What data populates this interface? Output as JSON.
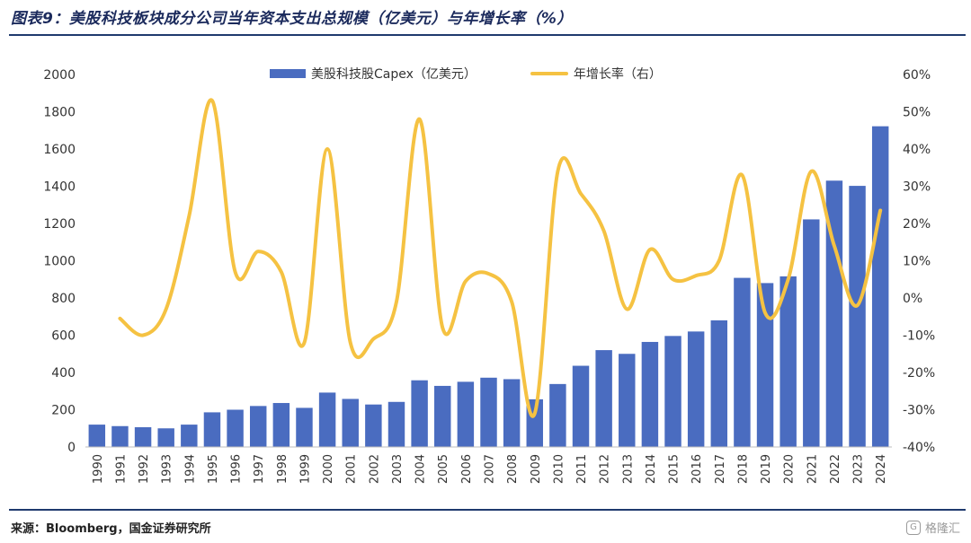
{
  "title": "图表9：美股科技板块成分公司当年资本支出总规模（亿美元）与年增长率（%）",
  "source": "来源：Bloomberg，国金证券研究所",
  "watermark": "格隆汇",
  "colors": {
    "bar": "#4a6cc0",
    "line": "#f5c242",
    "rule": "#1f3a6e"
  },
  "chart_data": {
    "type": "bar",
    "categories": [
      "1990",
      "1991",
      "1992",
      "1993",
      "1994",
      "1995",
      "1996",
      "1997",
      "1998",
      "1999",
      "2000",
      "2001",
      "2002",
      "2003",
      "2004",
      "2005",
      "2006",
      "2007",
      "2008",
      "2009",
      "2010",
      "2011",
      "2012",
      "2013",
      "2014",
      "2015",
      "2016",
      "2017",
      "2018",
      "2019",
      "2020",
      "2021",
      "2022",
      "2023",
      "2024"
    ],
    "series": [
      {
        "name": "美股科技股Capex（亿美元）",
        "type": "bar",
        "axis": "left",
        "values": [
          120,
          112,
          106,
          100,
          120,
          186,
          200,
          220,
          236,
          210,
          292,
          258,
          228,
          242,
          358,
          328,
          350,
          372,
          364,
          256,
          338,
          436,
          520,
          500,
          564,
          596,
          620,
          680,
          908,
          880,
          916,
          1222,
          1430,
          1402,
          1722
        ]
      },
      {
        "name": "年增长率（右）",
        "type": "line",
        "axis": "right",
        "values": [
          null,
          -5.5,
          -10,
          -3,
          22,
          53,
          7,
          12.5,
          7,
          -12,
          40,
          -12,
          -11,
          -1,
          48,
          -8,
          4.5,
          6.5,
          -1,
          -31,
          34,
          28,
          18,
          -3,
          13,
          5,
          6,
          10,
          33,
          -4,
          5,
          34,
          14,
          -2,
          23.5
        ]
      }
    ],
    "y_left": {
      "min": 0,
      "max": 2000,
      "ticks": [
        "0",
        "200",
        "400",
        "600",
        "800",
        "1000",
        "1200",
        "1400",
        "1600",
        "1800",
        "2000"
      ]
    },
    "y_right": {
      "min": -40,
      "max": 60,
      "ticks": [
        "-40%",
        "-30%",
        "-20%",
        "-10%",
        "0%",
        "10%",
        "20%",
        "30%",
        "40%",
        "50%",
        "60%"
      ]
    },
    "grid": false,
    "legend": "top-center"
  }
}
